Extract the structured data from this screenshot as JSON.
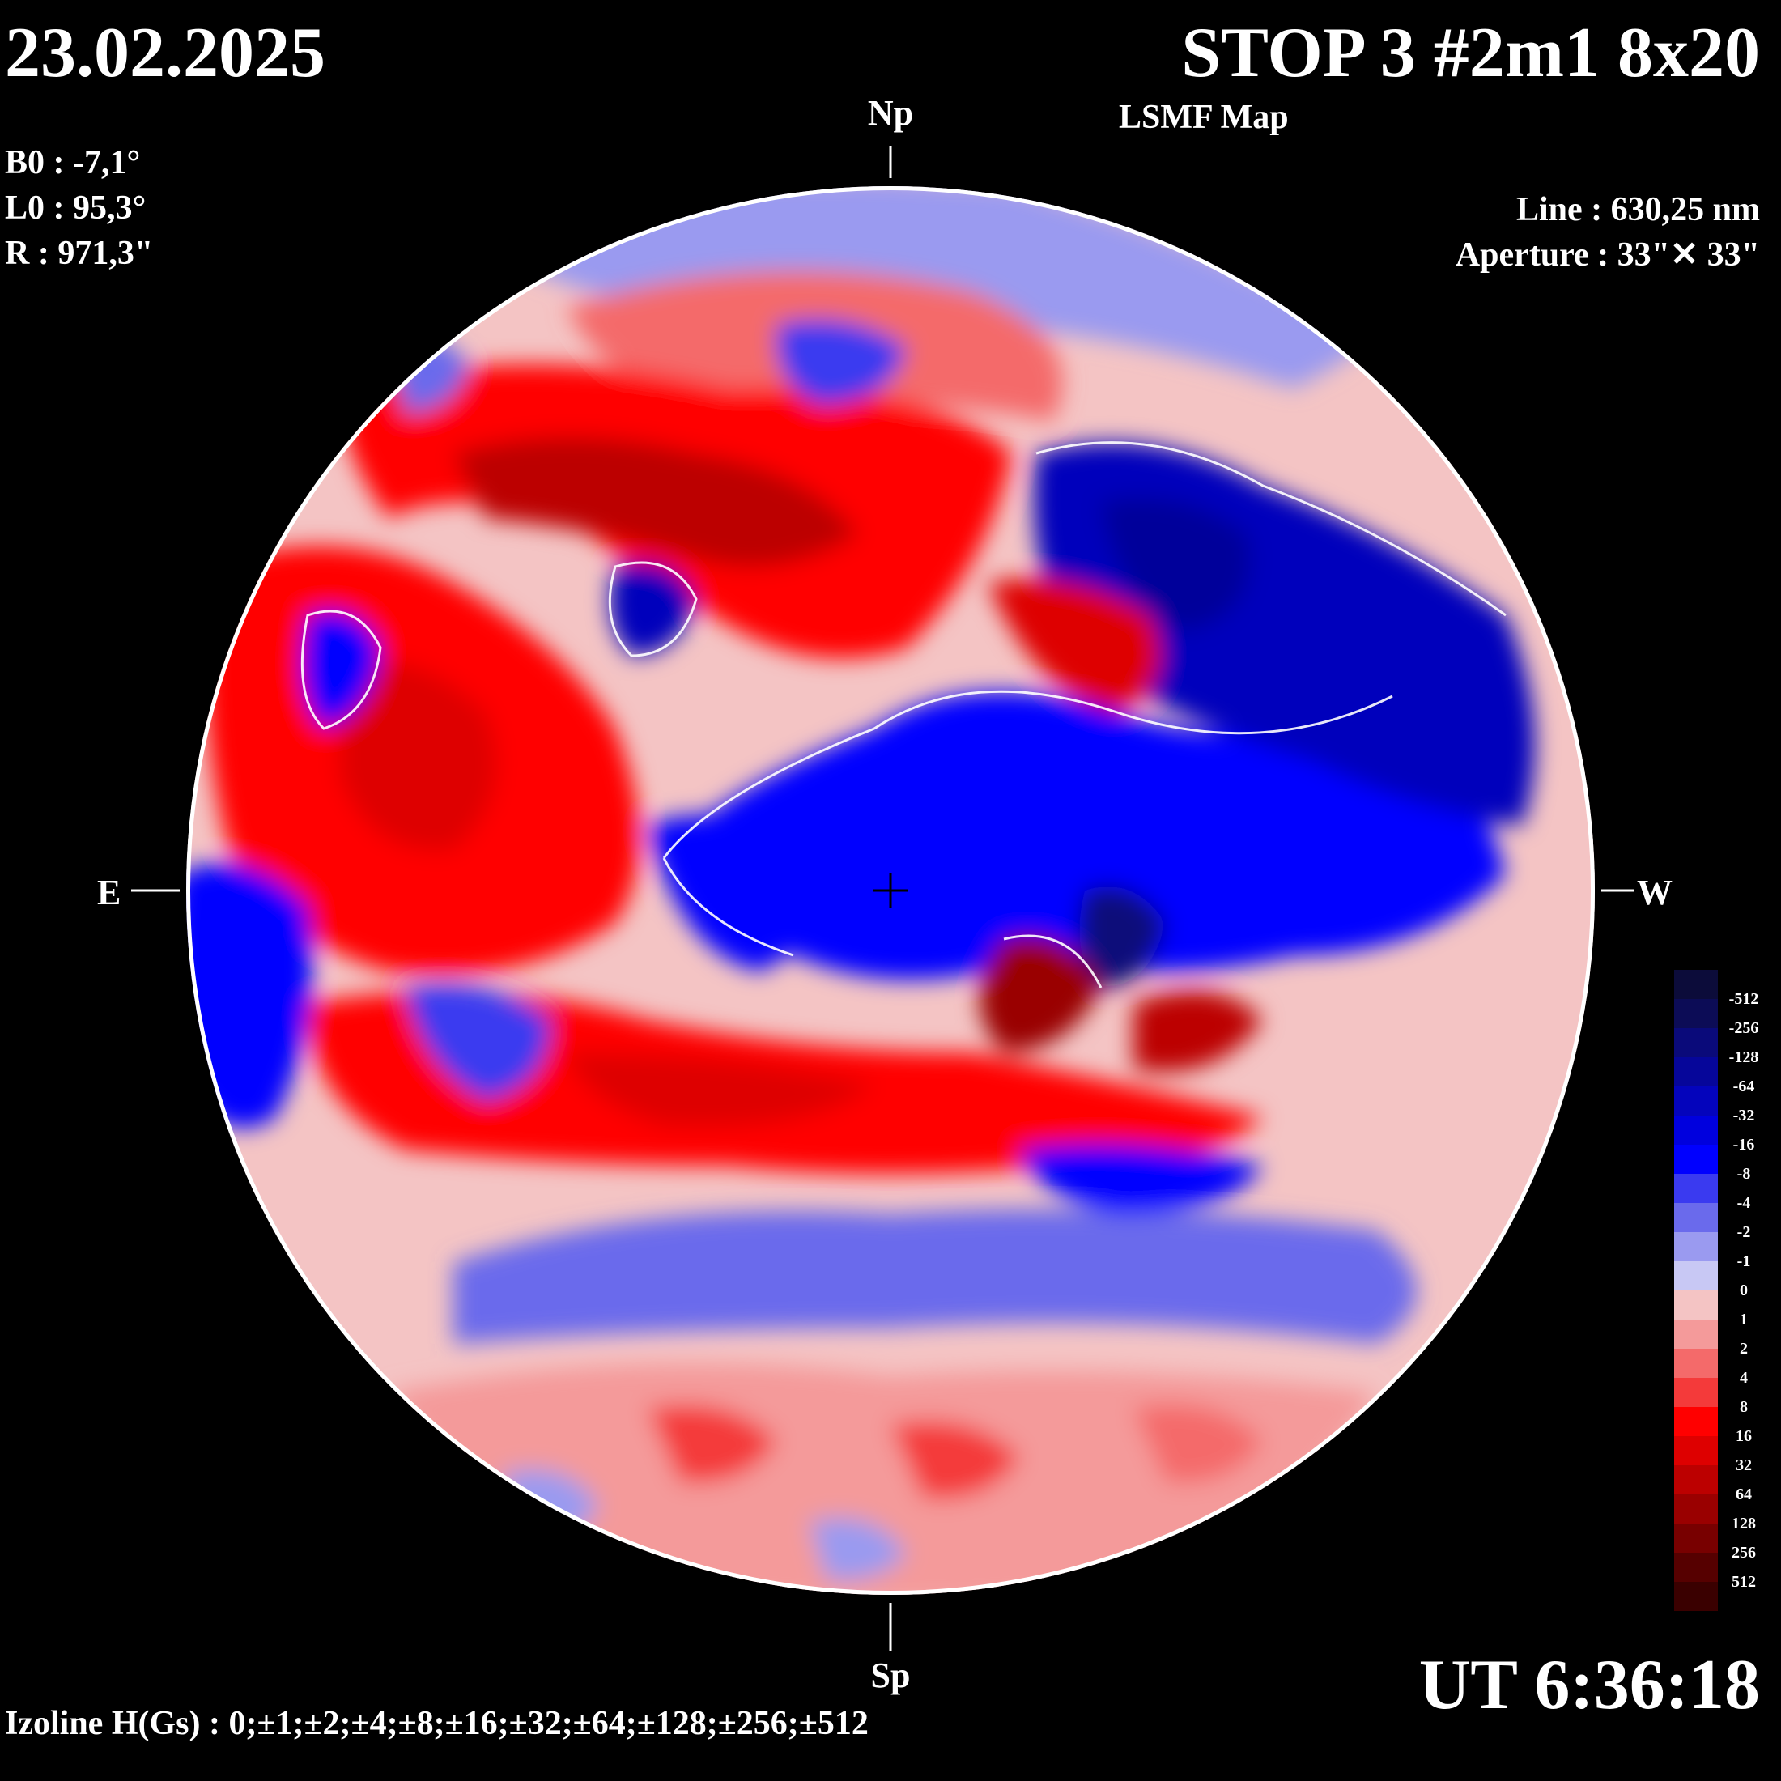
{
  "header": {
    "date": "23.02.2025",
    "title": "STOP 3 #2m1 8x20",
    "subtitle": "LSMF  Map"
  },
  "parameters": {
    "b0": "B0 : -7,1°",
    "l0": "L0 : 95,3°",
    "r": "R  : 971,3\""
  },
  "instrument": {
    "line": "Line :  630,25 nm",
    "aperture": "Aperture : 33\"✕ 33\""
  },
  "directions": {
    "north": "Np",
    "south": "Sp",
    "east": "E",
    "west": "W"
  },
  "time": "UT 6:36:18",
  "izoline": "Izoline H(Gs) : 0;±1;±2;±4;±8;±16;±32;±64;±128;±256;±512",
  "colorbar": {
    "levels": [
      {
        "label": "-512",
        "color": "#0c0c3a"
      },
      {
        "label": "-256",
        "color": "#0c0c56"
      },
      {
        "label": "-128",
        "color": "#0a0a7a"
      },
      {
        "label": "-64",
        "color": "#06069a"
      },
      {
        "label": "-32",
        "color": "#0404bc"
      },
      {
        "label": "-16",
        "color": "#0000de"
      },
      {
        "label": "-8",
        "color": "#0000ff"
      },
      {
        "label": "-4",
        "color": "#3a3af0"
      },
      {
        "label": "-2",
        "color": "#6a6aec"
      },
      {
        "label": "-1",
        "color": "#9a9af0"
      },
      {
        "label": "0",
        "color": "#c8c8f4"
      },
      {
        "label": "1",
        "color": "#f4c4c4"
      },
      {
        "label": "2",
        "color": "#f49a9a"
      },
      {
        "label": "4",
        "color": "#f46a6a"
      },
      {
        "label": "8",
        "color": "#f43a3a"
      },
      {
        "label": "16",
        "color": "#ff0000"
      },
      {
        "label": "32",
        "color": "#de0000"
      },
      {
        "label": "64",
        "color": "#bc0000"
      },
      {
        "label": "128",
        "color": "#9a0000"
      },
      {
        "label": "256",
        "color": "#780000"
      },
      {
        "label": "512",
        "color": "#560000"
      },
      {
        "label": "",
        "color": "#3a0000"
      }
    ]
  },
  "colors": {
    "background": "#000000",
    "text": "#ffffff",
    "isoline": "#ffffff"
  }
}
